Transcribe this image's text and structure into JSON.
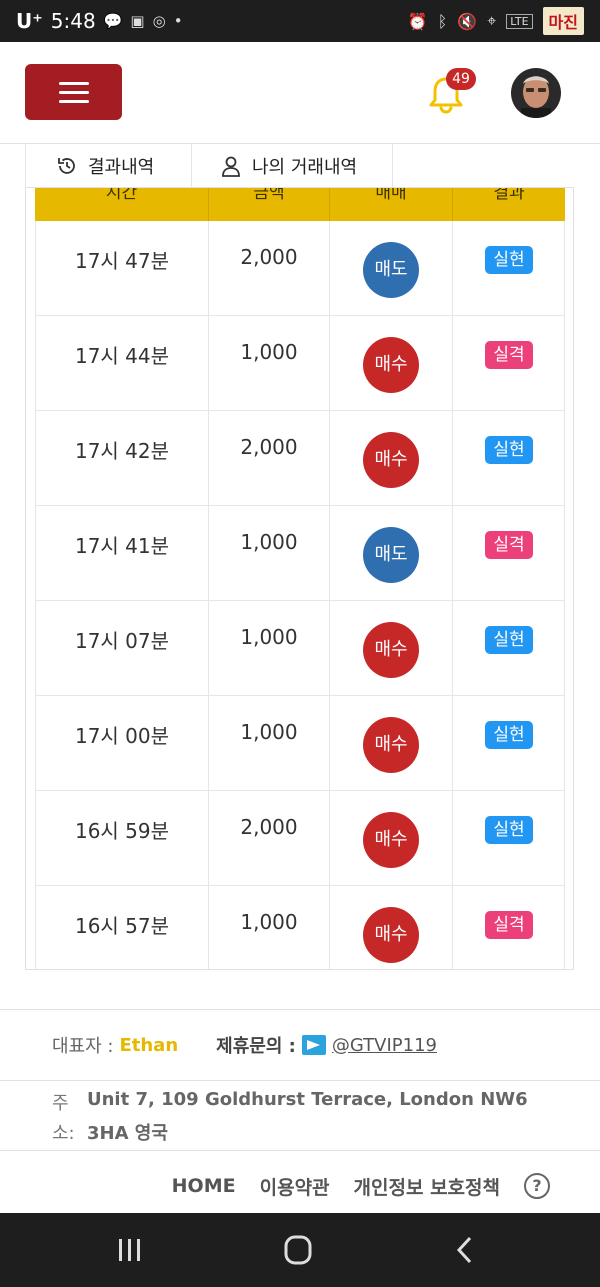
{
  "status_bar": {
    "carrier": "U⁺",
    "time": "5:48",
    "network": "LTE",
    "watermark": "마진"
  },
  "header": {
    "notification_count": "49"
  },
  "tabs": [
    {
      "label": "결과내역"
    },
    {
      "label": "나의 거래내역"
    }
  ],
  "table": {
    "columns": [
      "시간",
      "금액",
      "매매",
      "결과"
    ],
    "rows": [
      {
        "time": "17시 47분",
        "amount": "2,000",
        "trade": "매도",
        "result": "실현"
      },
      {
        "time": "17시 44분",
        "amount": "1,000",
        "trade": "매수",
        "result": "실격"
      },
      {
        "time": "17시 42분",
        "amount": "2,000",
        "trade": "매수",
        "result": "실현"
      },
      {
        "time": "17시 41분",
        "amount": "1,000",
        "trade": "매도",
        "result": "실격"
      },
      {
        "time": "17시 07분",
        "amount": "1,000",
        "trade": "매수",
        "result": "실현"
      },
      {
        "time": "17시 00분",
        "amount": "1,000",
        "trade": "매수",
        "result": "실현"
      },
      {
        "time": "16시 59분",
        "amount": "2,000",
        "trade": "매수",
        "result": "실현"
      },
      {
        "time": "16시 57분",
        "amount": "1,000",
        "trade": "매수",
        "result": "실격"
      }
    ]
  },
  "colors": {
    "sell": "#2f6fb0",
    "buy": "#c62828",
    "realized": "#2196f3",
    "disqualified": "#ec407a"
  },
  "footer": {
    "ceo_label": "대표자 :",
    "ceo_name": "Ethan",
    "contact_label": "제휴문의 :",
    "contact_handle": "@GTVIP119",
    "address_label_1": "주",
    "address_label_2": "소:",
    "address_line_1": "Unit 7, 109 Goldhurst Terrace, London NW6",
    "address_line_2": "3HA 영국",
    "nav": [
      "HOME",
      "이용약관",
      "개인정보 보호정책"
    ],
    "help": "?"
  }
}
